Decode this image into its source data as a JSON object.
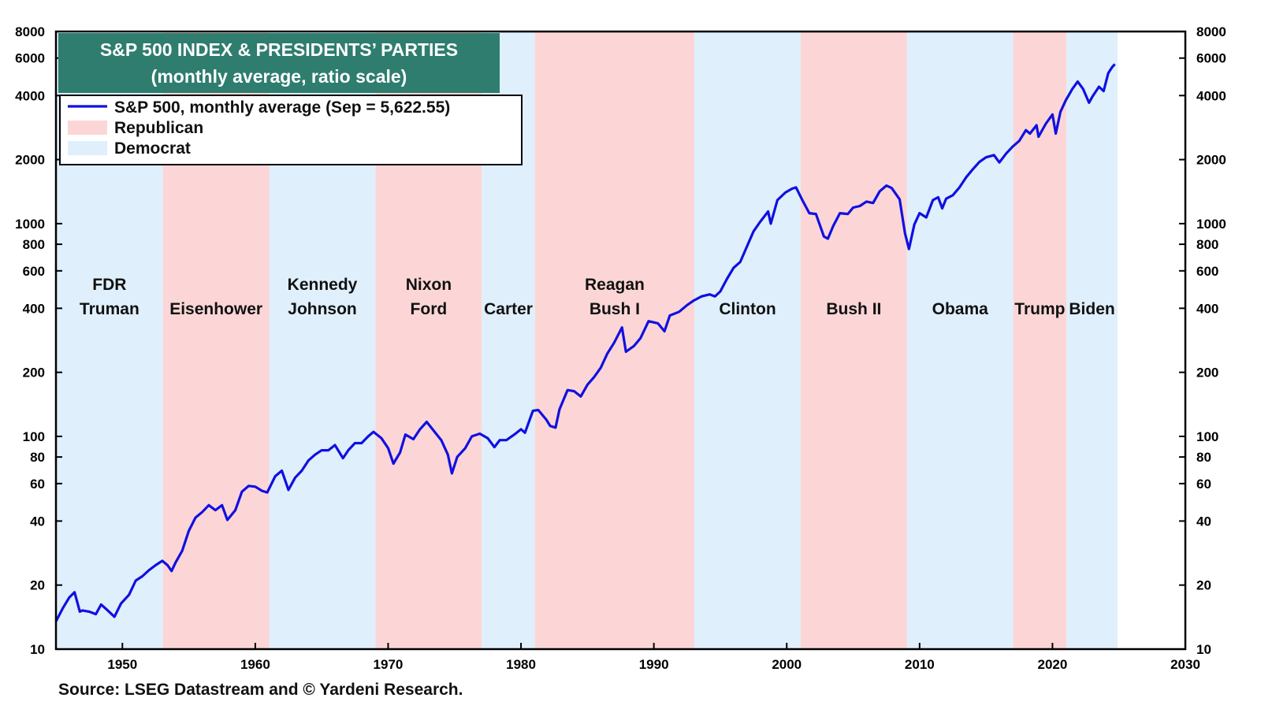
{
  "chart_data": {
    "type": "line",
    "title": "S&P 500 INDEX & PRESIDENTS’ PARTIES",
    "subtitle": "(monthly average, ratio scale)",
    "x_range": [
      1945,
      2030
    ],
    "y_range": [
      10,
      8000
    ],
    "y_scale": "log",
    "x_ticks": [
      1950,
      1960,
      1970,
      1980,
      1990,
      2000,
      2010,
      2020,
      2030
    ],
    "y_ticks": [
      10,
      20,
      40,
      60,
      80,
      100,
      200,
      400,
      600,
      800,
      1000,
      2000,
      4000,
      6000,
      8000
    ],
    "y_tick_labels_both_sides": true,
    "legend": {
      "placement": "top-left",
      "items": [
        {
          "label": "S&P 500, monthly average (Sep = 5,622.55)",
          "color": "#1010e0",
          "kind": "line"
        },
        {
          "label": "Republican",
          "color": "#fcd6d6",
          "kind": "band"
        },
        {
          "label": "Democrat",
          "color": "#dfeffc",
          "kind": "band"
        }
      ]
    },
    "title_box_color": "#2e7d6e",
    "presidencies": [
      {
        "label": [
          "FDR",
          "Truman"
        ],
        "party": "Democrat",
        "start": 1945.0,
        "end": 1953.05
      },
      {
        "label": [
          "Eisenhower"
        ],
        "party": "Republican",
        "start": 1953.05,
        "end": 1961.05
      },
      {
        "label": [
          "Kennedy",
          "Johnson"
        ],
        "party": "Democrat",
        "start": 1961.05,
        "end": 1969.05
      },
      {
        "label": [
          "Nixon",
          "Ford"
        ],
        "party": "Republican",
        "start": 1969.05,
        "end": 1977.05
      },
      {
        "label": [
          "Carter"
        ],
        "party": "Democrat",
        "start": 1977.05,
        "end": 1981.05
      },
      {
        "label": [
          "Reagan",
          "Bush I"
        ],
        "party": "Republican",
        "start": 1981.05,
        "end": 1993.05
      },
      {
        "label": [
          "Clinton"
        ],
        "party": "Democrat",
        "start": 1993.05,
        "end": 2001.05
      },
      {
        "label": [
          "Bush II"
        ],
        "party": "Republican",
        "start": 2001.05,
        "end": 2009.05
      },
      {
        "label": [
          "Obama"
        ],
        "party": "Democrat",
        "start": 2009.05,
        "end": 2017.05
      },
      {
        "label": [
          "Trump"
        ],
        "party": "Republican",
        "start": 2017.05,
        "end": 2021.05
      },
      {
        "label": [
          "Biden"
        ],
        "party": "Democrat",
        "start": 2021.05,
        "end": 2024.9
      }
    ],
    "series": [
      {
        "name": "S&P 500, monthly average (Sep = 5,622.55)",
        "color": "#1010e0",
        "points": [
          [
            1945.0,
            13.5
          ],
          [
            1945.5,
            15.5
          ],
          [
            1946.0,
            17.5
          ],
          [
            1946.4,
            18.5
          ],
          [
            1946.8,
            15.0
          ],
          [
            1947.0,
            15.2
          ],
          [
            1947.5,
            15.0
          ],
          [
            1948.0,
            14.6
          ],
          [
            1948.4,
            16.2
          ],
          [
            1948.8,
            15.4
          ],
          [
            1949.4,
            14.2
          ],
          [
            1949.9,
            16.4
          ],
          [
            1950.5,
            18.0
          ],
          [
            1951.0,
            21.0
          ],
          [
            1951.5,
            22.0
          ],
          [
            1952.0,
            23.5
          ],
          [
            1952.5,
            24.8
          ],
          [
            1953.0,
            26.0
          ],
          [
            1953.4,
            24.8
          ],
          [
            1953.7,
            23.3
          ],
          [
            1954.0,
            25.5
          ],
          [
            1954.5,
            29.0
          ],
          [
            1955.0,
            36.0
          ],
          [
            1955.5,
            41.5
          ],
          [
            1956.0,
            44.0
          ],
          [
            1956.5,
            47.5
          ],
          [
            1957.0,
            45.0
          ],
          [
            1957.5,
            47.5
          ],
          [
            1957.9,
            40.5
          ],
          [
            1958.5,
            45.0
          ],
          [
            1959.0,
            55.0
          ],
          [
            1959.5,
            58.5
          ],
          [
            1960.0,
            58.0
          ],
          [
            1960.5,
            55.5
          ],
          [
            1960.9,
            54.5
          ],
          [
            1961.5,
            65.0
          ],
          [
            1962.0,
            69.0
          ],
          [
            1962.5,
            56.0
          ],
          [
            1963.0,
            64.0
          ],
          [
            1963.5,
            69.0
          ],
          [
            1964.0,
            77.0
          ],
          [
            1964.5,
            82.0
          ],
          [
            1965.0,
            86.0
          ],
          [
            1965.5,
            86.0
          ],
          [
            1966.0,
            91.0
          ],
          [
            1966.6,
            79.0
          ],
          [
            1967.0,
            86.0
          ],
          [
            1967.5,
            93.0
          ],
          [
            1968.0,
            93.0
          ],
          [
            1968.5,
            100.0
          ],
          [
            1968.9,
            105.0
          ],
          [
            1969.5,
            98.0
          ],
          [
            1970.0,
            88.0
          ],
          [
            1970.4,
            74.5
          ],
          [
            1970.9,
            84.0
          ],
          [
            1971.3,
            102.0
          ],
          [
            1971.9,
            97.0
          ],
          [
            1972.4,
            108.0
          ],
          [
            1972.9,
            117.0
          ],
          [
            1973.5,
            105.0
          ],
          [
            1974.0,
            96.0
          ],
          [
            1974.5,
            82.0
          ],
          [
            1974.8,
            67.0
          ],
          [
            1975.2,
            80.0
          ],
          [
            1975.8,
            88.0
          ],
          [
            1976.3,
            100.0
          ],
          [
            1976.9,
            103.0
          ],
          [
            1977.5,
            98.0
          ],
          [
            1978.0,
            89.0
          ],
          [
            1978.4,
            96.0
          ],
          [
            1978.9,
            96.0
          ],
          [
            1979.5,
            102.0
          ],
          [
            1980.0,
            108.0
          ],
          [
            1980.3,
            104.0
          ],
          [
            1980.9,
            132.0
          ],
          [
            1981.3,
            133.0
          ],
          [
            1981.9,
            120.0
          ],
          [
            1982.2,
            112.0
          ],
          [
            1982.6,
            110.0
          ],
          [
            1982.9,
            134.0
          ],
          [
            1983.5,
            165.0
          ],
          [
            1984.0,
            163.0
          ],
          [
            1984.5,
            154.0
          ],
          [
            1985.0,
            175.0
          ],
          [
            1985.5,
            190.0
          ],
          [
            1986.0,
            210.0
          ],
          [
            1986.5,
            245.0
          ],
          [
            1987.0,
            275.0
          ],
          [
            1987.6,
            325.0
          ],
          [
            1987.9,
            250.0
          ],
          [
            1988.5,
            266.0
          ],
          [
            1989.0,
            290.0
          ],
          [
            1989.6,
            348.0
          ],
          [
            1990.3,
            340.0
          ],
          [
            1990.8,
            312.0
          ],
          [
            1991.2,
            370.0
          ],
          [
            1991.9,
            385.0
          ],
          [
            1992.5,
            414.0
          ],
          [
            1993.0,
            435.0
          ],
          [
            1993.6,
            455.0
          ],
          [
            1994.2,
            465.0
          ],
          [
            1994.6,
            455.0
          ],
          [
            1995.0,
            480.0
          ],
          [
            1995.5,
            550.0
          ],
          [
            1996.0,
            620.0
          ],
          [
            1996.5,
            660.0
          ],
          [
            1997.0,
            780.0
          ],
          [
            1997.5,
            920.0
          ],
          [
            1998.0,
            1020.0
          ],
          [
            1998.6,
            1140.0
          ],
          [
            1998.8,
            1000.0
          ],
          [
            1999.3,
            1290.0
          ],
          [
            1999.9,
            1400.0
          ],
          [
            2000.4,
            1460.0
          ],
          [
            2000.7,
            1480.0
          ],
          [
            2001.2,
            1280.0
          ],
          [
            2001.7,
            1120.0
          ],
          [
            2002.2,
            1110.0
          ],
          [
            2002.8,
            870.0
          ],
          [
            2003.1,
            850.0
          ],
          [
            2003.5,
            975.0
          ],
          [
            2004.0,
            1120.0
          ],
          [
            2004.6,
            1110.0
          ],
          [
            2005.0,
            1190.0
          ],
          [
            2005.5,
            1210.0
          ],
          [
            2006.0,
            1270.0
          ],
          [
            2006.5,
            1250.0
          ],
          [
            2007.0,
            1420.0
          ],
          [
            2007.5,
            1510.0
          ],
          [
            2007.9,
            1470.0
          ],
          [
            2008.5,
            1300.0
          ],
          [
            2008.9,
            900.0
          ],
          [
            2009.2,
            760.0
          ],
          [
            2009.6,
            990.0
          ],
          [
            2010.0,
            1120.0
          ],
          [
            2010.5,
            1070.0
          ],
          [
            2011.0,
            1290.0
          ],
          [
            2011.4,
            1330.0
          ],
          [
            2011.7,
            1180.0
          ],
          [
            2012.0,
            1310.0
          ],
          [
            2012.5,
            1360.0
          ],
          [
            2013.0,
            1480.0
          ],
          [
            2013.5,
            1650.0
          ],
          [
            2014.0,
            1800.0
          ],
          [
            2014.5,
            1950.0
          ],
          [
            2015.0,
            2050.0
          ],
          [
            2015.6,
            2100.0
          ],
          [
            2016.0,
            1940.0
          ],
          [
            2016.5,
            2130.0
          ],
          [
            2017.0,
            2300.0
          ],
          [
            2017.5,
            2450.0
          ],
          [
            2018.0,
            2750.0
          ],
          [
            2018.3,
            2650.0
          ],
          [
            2018.8,
            2900.0
          ],
          [
            2018.95,
            2560.0
          ],
          [
            2019.5,
            2950.0
          ],
          [
            2020.0,
            3260.0
          ],
          [
            2020.25,
            2650.0
          ],
          [
            2020.6,
            3350.0
          ],
          [
            2021.0,
            3800.0
          ],
          [
            2021.5,
            4300.0
          ],
          [
            2021.9,
            4650.0
          ],
          [
            2022.3,
            4300.0
          ],
          [
            2022.75,
            3700.0
          ],
          [
            2023.0,
            3950.0
          ],
          [
            2023.5,
            4400.0
          ],
          [
            2023.85,
            4200.0
          ],
          [
            2024.2,
            5100.0
          ],
          [
            2024.5,
            5450.0
          ],
          [
            2024.7,
            5622.55
          ]
        ]
      }
    ],
    "source": "Source: LSEG Datastream and © Yardeni Research."
  }
}
